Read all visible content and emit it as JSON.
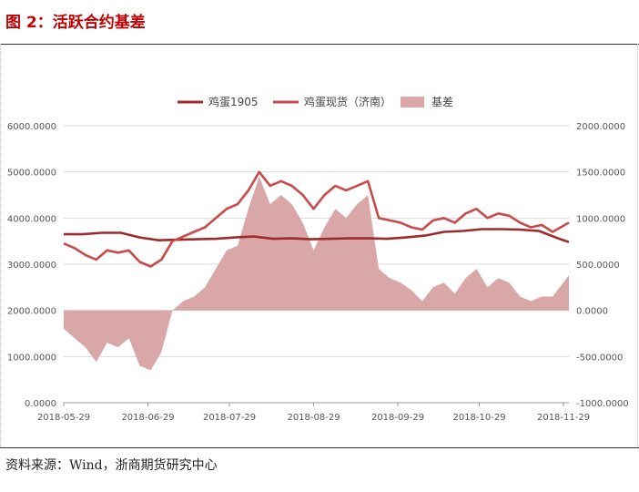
{
  "figure_title": "图 2：活跃合约基差",
  "source_note": "资料来源：Wind，浙商期货研究中心",
  "colors": {
    "title": "#c00000",
    "series_1905": "#9e2b2b",
    "series_spot": "#c94a4a",
    "series_basis": "#d9a7a7"
  },
  "chart_data": {
    "type": "line",
    "legend_position": "top",
    "grid": true,
    "x_ticks": [
      "2018-05-29",
      "2018-06-29",
      "2018-07-29",
      "2018-08-29",
      "2018-09-29",
      "2018-10-29",
      "2018-11-29"
    ],
    "x_range": [
      "2018-05-29",
      "2018-12-01"
    ],
    "y_left": {
      "ticks": [
        "6000.0000",
        "5000.0000",
        "4000.0000",
        "3000.0000",
        "2000.0000",
        "1000.0000",
        "0.0000"
      ],
      "min": 0,
      "max": 6000
    },
    "y_right": {
      "ticks": [
        "2000.0000",
        "1500.0000",
        "1000.0000",
        "500.0000",
        "0.0000",
        "-500.0000",
        "-1000.0000"
      ],
      "min": -1000,
      "max": 2000
    },
    "series": [
      {
        "name": "鸡蛋1905",
        "type": "line",
        "axis": "left",
        "points": [
          [
            "2018-05-29",
            3650
          ],
          [
            "2018-06-05",
            3650
          ],
          [
            "2018-06-12",
            3680
          ],
          [
            "2018-06-19",
            3680
          ],
          [
            "2018-06-26",
            3580
          ],
          [
            "2018-07-03",
            3520
          ],
          [
            "2018-07-10",
            3530
          ],
          [
            "2018-07-17",
            3540
          ],
          [
            "2018-07-24",
            3550
          ],
          [
            "2018-07-31",
            3580
          ],
          [
            "2018-08-07",
            3600
          ],
          [
            "2018-08-14",
            3550
          ],
          [
            "2018-08-21",
            3560
          ],
          [
            "2018-08-28",
            3540
          ],
          [
            "2018-09-04",
            3550
          ],
          [
            "2018-09-11",
            3560
          ],
          [
            "2018-09-18",
            3560
          ],
          [
            "2018-09-25",
            3550
          ],
          [
            "2018-10-02",
            3580
          ],
          [
            "2018-10-09",
            3620
          ],
          [
            "2018-10-16",
            3700
          ],
          [
            "2018-10-23",
            3720
          ],
          [
            "2018-10-30",
            3760
          ],
          [
            "2018-11-06",
            3760
          ],
          [
            "2018-11-13",
            3750
          ],
          [
            "2018-11-20",
            3720
          ],
          [
            "2018-11-27",
            3560
          ],
          [
            "2018-12-01",
            3480
          ]
        ]
      },
      {
        "name": "鸡蛋现货（济南）",
        "type": "line",
        "axis": "left",
        "points": [
          [
            "2018-05-29",
            3450
          ],
          [
            "2018-06-02",
            3350
          ],
          [
            "2018-06-06",
            3200
          ],
          [
            "2018-06-10",
            3100
          ],
          [
            "2018-06-14",
            3300
          ],
          [
            "2018-06-18",
            3250
          ],
          [
            "2018-06-22",
            3300
          ],
          [
            "2018-06-26",
            3050
          ],
          [
            "2018-06-30",
            2950
          ],
          [
            "2018-07-04",
            3100
          ],
          [
            "2018-07-08",
            3500
          ],
          [
            "2018-07-12",
            3600
          ],
          [
            "2018-07-16",
            3700
          ],
          [
            "2018-07-20",
            3800
          ],
          [
            "2018-07-24",
            4000
          ],
          [
            "2018-07-28",
            4200
          ],
          [
            "2018-08-01",
            4300
          ],
          [
            "2018-08-05",
            4600
          ],
          [
            "2018-08-09",
            5000
          ],
          [
            "2018-08-13",
            4700
          ],
          [
            "2018-08-17",
            4800
          ],
          [
            "2018-08-21",
            4700
          ],
          [
            "2018-08-25",
            4500
          ],
          [
            "2018-08-29",
            4200
          ],
          [
            "2018-09-02",
            4500
          ],
          [
            "2018-09-06",
            4700
          ],
          [
            "2018-09-10",
            4600
          ],
          [
            "2018-09-14",
            4700
          ],
          [
            "2018-09-18",
            4800
          ],
          [
            "2018-09-22",
            4000
          ],
          [
            "2018-09-26",
            3950
          ],
          [
            "2018-09-30",
            3900
          ],
          [
            "2018-10-04",
            3800
          ],
          [
            "2018-10-08",
            3750
          ],
          [
            "2018-10-12",
            3950
          ],
          [
            "2018-10-16",
            4000
          ],
          [
            "2018-10-20",
            3900
          ],
          [
            "2018-10-24",
            4100
          ],
          [
            "2018-10-28",
            4200
          ],
          [
            "2018-11-01",
            4000
          ],
          [
            "2018-11-05",
            4100
          ],
          [
            "2018-11-09",
            4050
          ],
          [
            "2018-11-13",
            3900
          ],
          [
            "2018-11-17",
            3800
          ],
          [
            "2018-11-21",
            3850
          ],
          [
            "2018-11-25",
            3700
          ],
          [
            "2018-12-01",
            3900
          ]
        ]
      },
      {
        "name": "基差",
        "type": "area",
        "axis": "right",
        "points": [
          [
            "2018-05-29",
            -200
          ],
          [
            "2018-06-02",
            -300
          ],
          [
            "2018-06-06",
            -400
          ],
          [
            "2018-06-10",
            -560
          ],
          [
            "2018-06-14",
            -350
          ],
          [
            "2018-06-18",
            -400
          ],
          [
            "2018-06-22",
            -300
          ],
          [
            "2018-06-26",
            -600
          ],
          [
            "2018-06-30",
            -650
          ],
          [
            "2018-07-04",
            -450
          ],
          [
            "2018-07-08",
            0
          ],
          [
            "2018-07-12",
            100
          ],
          [
            "2018-07-16",
            150
          ],
          [
            "2018-07-20",
            250
          ],
          [
            "2018-07-24",
            450
          ],
          [
            "2018-07-28",
            650
          ],
          [
            "2018-08-01",
            700
          ],
          [
            "2018-08-05",
            1100
          ],
          [
            "2018-08-09",
            1450
          ],
          [
            "2018-08-13",
            1150
          ],
          [
            "2018-08-17",
            1250
          ],
          [
            "2018-08-21",
            1150
          ],
          [
            "2018-08-25",
            950
          ],
          [
            "2018-08-29",
            650
          ],
          [
            "2018-09-02",
            900
          ],
          [
            "2018-09-06",
            1100
          ],
          [
            "2018-09-10",
            1000
          ],
          [
            "2018-09-14",
            1150
          ],
          [
            "2018-09-18",
            1250
          ],
          [
            "2018-09-22",
            450
          ],
          [
            "2018-09-26",
            350
          ],
          [
            "2018-09-30",
            300
          ],
          [
            "2018-10-04",
            220
          ],
          [
            "2018-10-08",
            100
          ],
          [
            "2018-10-12",
            250
          ],
          [
            "2018-10-16",
            300
          ],
          [
            "2018-10-20",
            180
          ],
          [
            "2018-10-24",
            350
          ],
          [
            "2018-10-28",
            450
          ],
          [
            "2018-11-01",
            250
          ],
          [
            "2018-11-05",
            350
          ],
          [
            "2018-11-09",
            300
          ],
          [
            "2018-11-13",
            150
          ],
          [
            "2018-11-17",
            100
          ],
          [
            "2018-11-21",
            150
          ],
          [
            "2018-11-25",
            150
          ],
          [
            "2018-12-01",
            380
          ]
        ]
      }
    ]
  }
}
